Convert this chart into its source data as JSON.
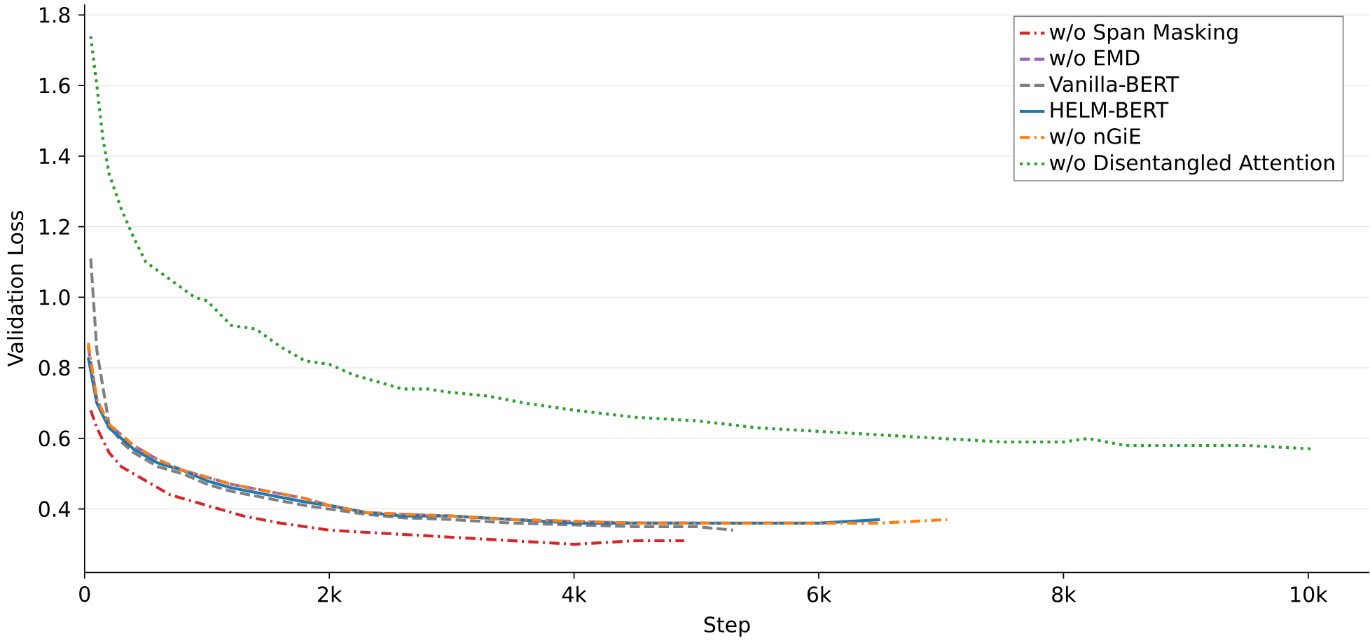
{
  "chart_data": {
    "type": "line",
    "xlabel": "Step",
    "ylabel": "Validation Loss",
    "xlim": [
      0,
      10500
    ],
    "ylim": [
      0.22,
      1.83
    ],
    "xticks": [
      {
        "value": 0,
        "label": "0"
      },
      {
        "value": 2000,
        "label": "2k"
      },
      {
        "value": 4000,
        "label": "4k"
      },
      {
        "value": 6000,
        "label": "6k"
      },
      {
        "value": 8000,
        "label": "8k"
      },
      {
        "value": 10000,
        "label": "10k"
      }
    ],
    "yticks": [
      0.4,
      0.6,
      0.8,
      {
        "value": 1,
        "label": "1.0"
      },
      1.2,
      1.4,
      1.6,
      1.8
    ],
    "grid": "y",
    "legend": "top right",
    "series": [
      {
        "name": "w/o Span Masking",
        "color": "#d62728",
        "line_style": "dashdot",
        "x": [
          50,
          100,
          200,
          300,
          500,
          700,
          1000,
          1300,
          1600,
          2000,
          2500,
          3000,
          3500,
          4000,
          4500,
          4900
        ],
        "values": [
          0.68,
          0.63,
          0.56,
          0.52,
          0.48,
          0.44,
          0.41,
          0.38,
          0.36,
          0.34,
          0.33,
          0.32,
          0.31,
          0.3,
          0.31,
          0.31
        ]
      },
      {
        "name": "w/o EMD",
        "color": "#9467bd",
        "line_style": "dashed",
        "x": [
          30,
          100,
          200,
          300,
          400,
          500,
          600,
          800,
          1000,
          1200,
          1500,
          1800,
          2000,
          2300,
          2600,
          3000,
          3500,
          4000,
          4500,
          5000
        ],
        "values": [
          0.86,
          0.71,
          0.64,
          0.61,
          0.58,
          0.56,
          0.54,
          0.51,
          0.49,
          0.47,
          0.45,
          0.43,
          0.41,
          0.39,
          0.385,
          0.38,
          0.37,
          0.365,
          0.36,
          0.36
        ]
      },
      {
        "name": "Vanilla-BERT",
        "color": "#7f7f7f",
        "line_style": "dashed",
        "x": [
          50,
          100,
          200,
          300,
          400,
          500,
          600,
          800,
          1000,
          1200,
          1500,
          1800,
          2000,
          2300,
          2600,
          3000,
          3500,
          4000,
          4500,
          5000,
          5300
        ],
        "values": [
          1.11,
          0.85,
          0.64,
          0.59,
          0.56,
          0.54,
          0.52,
          0.5,
          0.47,
          0.45,
          0.43,
          0.41,
          0.4,
          0.385,
          0.375,
          0.37,
          0.36,
          0.355,
          0.35,
          0.35,
          0.34
        ]
      },
      {
        "name": "HELM-BERT",
        "color": "#1f77b4",
        "line_style": "solid",
        "x": [
          30,
          100,
          200,
          300,
          400,
          500,
          600,
          800,
          1000,
          1200,
          1500,
          1800,
          2000,
          2300,
          2600,
          3000,
          3500,
          4000,
          4500,
          5000,
          5500,
          6000,
          6500
        ],
        "values": [
          0.83,
          0.7,
          0.63,
          0.6,
          0.57,
          0.55,
          0.53,
          0.51,
          0.48,
          0.46,
          0.44,
          0.42,
          0.41,
          0.39,
          0.38,
          0.38,
          0.37,
          0.36,
          0.36,
          0.36,
          0.36,
          0.36,
          0.37
        ]
      },
      {
        "name": "w/o nGiE",
        "color": "#ff7f0e",
        "line_style": "dashdot",
        "x": [
          30,
          100,
          200,
          300,
          400,
          500,
          600,
          800,
          1000,
          1200,
          1500,
          1800,
          2000,
          2300,
          2600,
          3000,
          3500,
          4000,
          4500,
          5000,
          5500,
          6000,
          6500,
          7050
        ],
        "values": [
          0.87,
          0.71,
          0.64,
          0.61,
          0.58,
          0.56,
          0.54,
          0.51,
          0.49,
          0.47,
          0.45,
          0.43,
          0.41,
          0.39,
          0.385,
          0.38,
          0.37,
          0.365,
          0.36,
          0.36,
          0.36,
          0.36,
          0.36,
          0.37
        ]
      },
      {
        "name": "w/o Disentangled Attention",
        "color": "#2ca02c",
        "line_style": "dotted",
        "x": [
          50,
          100,
          150,
          200,
          300,
          400,
          500,
          700,
          900,
          1000,
          1200,
          1400,
          1600,
          1800,
          2000,
          2200,
          2400,
          2600,
          2800,
          3000,
          3300,
          3600,
          4000,
          4500,
          5000,
          5500,
          6000,
          6500,
          7000,
          7500,
          8000,
          8200,
          8500,
          9000,
          9500,
          10050
        ],
        "values": [
          1.74,
          1.6,
          1.45,
          1.35,
          1.25,
          1.17,
          1.1,
          1.05,
          1.0,
          0.99,
          0.92,
          0.91,
          0.86,
          0.82,
          0.81,
          0.78,
          0.76,
          0.74,
          0.74,
          0.73,
          0.72,
          0.7,
          0.68,
          0.66,
          0.65,
          0.63,
          0.62,
          0.61,
          0.6,
          0.59,
          0.59,
          0.6,
          0.58,
          0.58,
          0.58,
          0.57
        ]
      }
    ]
  }
}
